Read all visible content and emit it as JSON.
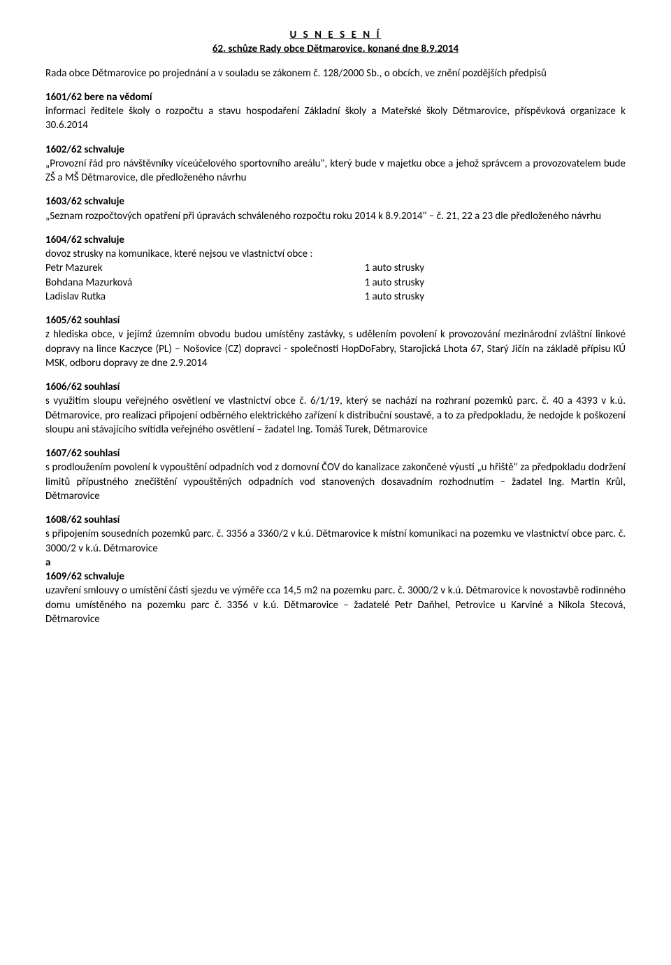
{
  "header": {
    "title1": "U S N E S E N Í",
    "title2": "62. schůze Rady obce Dětmarovice. konané dne 8.9.2014"
  },
  "intro": "Rada obce Dětmarovice po projednání a v souladu se zákonem č. 128/2000 Sb., o obcích, ve znění pozdějších předpisů",
  "sections": {
    "s1601": {
      "heading": "1601/62  bere na vědomí",
      "text": "informaci ředitele školy o rozpočtu a stavu hospodaření Základní školy a Mateřské školy Dětmarovice, příspěvková organizace k  30.6.2014"
    },
    "s1602": {
      "heading": "1602/62  schvaluje",
      "text": "„Provozní řád pro návštěvníky víceúčelového sportovního areálu\", který bude v majetku obce a jehož správcem a provozovatelem bude ZŠ a MŠ Dětmarovice, dle předloženého návrhu"
    },
    "s1603": {
      "heading": "1603/62  schvaluje",
      "text": "„Seznam rozpočtových opatření při úpravách schváleného rozpočtu roku 2014 k 8.9.2014\" – č. 21, 22 a 23 dle předloženého návrhu"
    },
    "s1604": {
      "heading": "1604/62  schvaluje",
      "line1": "dovoz strusky na komunikace, které nejsou ve vlastnictví obce :",
      "rows": [
        {
          "name": "Petr  Mazurek",
          "value": "1 auto strusky"
        },
        {
          "name": "Bohdana Mazurková",
          "value": "1 auto strusky"
        },
        {
          "name": "Ladislav Rutka",
          "value": "1 auto strusky"
        }
      ]
    },
    "s1605": {
      "heading": "1605/62  souhlasí",
      "text": "z hlediska  obce,  v jejímž  územním  obvodu  budou  umístěny  zastávky,  s udělením  povolení k provozování mezinárodní zvláštní linkové dopravy na lince Kaczyce (PL) – Nošovice (CZ) dopravci  - společnosti HopDoFabry, Starojická Lhota 67, Starý Jičín na základě  přípisu KÚ MSK, odboru dopravy ze dne 2.9.2014"
    },
    "s1606": {
      "heading": "1606/62  souhlasí",
      "text": "s využitím sloupu veřejného osvětlení ve vlastnictví obce č. 6/1/19, který se nachází na rozhraní pozemků parc. č. 40 a 4393 v k.ú. Dětmarovice, pro realizaci připojení odběrného elektrického zařízení k distribuční soustavě, a to za předpokladu, že nedojde k poškození sloupu ani stávajícího svítidla veřejného osvětlení – žadatel Ing. Tomáš Turek, Dětmarovice"
    },
    "s1607": {
      "heading": "1607/62  souhlasí",
      "text": "s prodloužením povolení k vypouštění odpadních vod z domovní ČOV do kanalizace zakončené výustí „u hřiště\"  za předpokladu dodržení limitů přípustného znečištění vypouštěných odpadních vod stanovených dosavadním rozhodnutím – žadatel Ing. Martin Krůl, Dětmarovice"
    },
    "s1608": {
      "heading": "1608/62  souhlasí",
      "text": "s připojením sousedních pozemků parc. č. 3356 a 3360/2 v k.ú. Dětmarovice  k místní komunikaci na pozemku ve vlastnictví obce  parc. č. 3000/2 v k.ú. Dětmarovice",
      "and": "a"
    },
    "s1609": {
      "heading": "1609/62  schvaluje",
      "text": "uzavření smlouvy o umístění části sjezdu ve výměře cca 14,5 m2 na pozemku parc. č. 3000/2 v k.ú. Dětmarovice k novostavbě rodinného domu umístěného na pozemku parc č. 3356 v k.ú. Dětmarovice – žadatelé Petr Daňhel, Petrovice u Karviné a Nikola Stecová, Dětmarovice"
    }
  }
}
